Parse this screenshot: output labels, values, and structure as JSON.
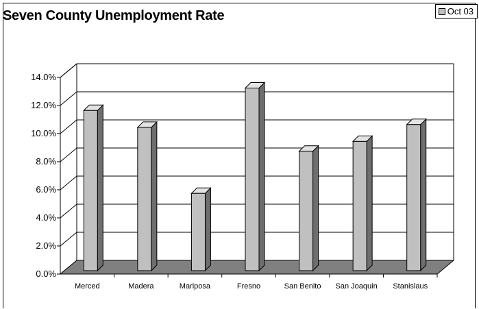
{
  "chart_data": {
    "type": "bar",
    "title": "Seven County Unemployment Rate",
    "legend": {
      "position": "top-right",
      "entries": [
        "Oct 03"
      ]
    },
    "categories": [
      "Merced",
      "Madera",
      "Mariposa",
      "Fresno",
      "San Benito",
      "San Joaquin",
      "Stanislaus"
    ],
    "series": [
      {
        "name": "Oct 03",
        "values": [
          11.4,
          10.2,
          5.5,
          13.0,
          8.5,
          9.2,
          10.4
        ]
      }
    ],
    "y_ticks": [
      "0.0%",
      "2.0%",
      "4.0%",
      "6.0%",
      "8.0%",
      "10.0%",
      "12.0%",
      "14.0%"
    ],
    "ylim": [
      0,
      14
    ],
    "grid": true,
    "style": "3d-column",
    "colors": {
      "bar_front": "#c0c0c0",
      "bar_side": "#6e6e6e",
      "bar_top": "#e3e3e3",
      "floor": "#808080",
      "wall": "#ffffff"
    }
  }
}
